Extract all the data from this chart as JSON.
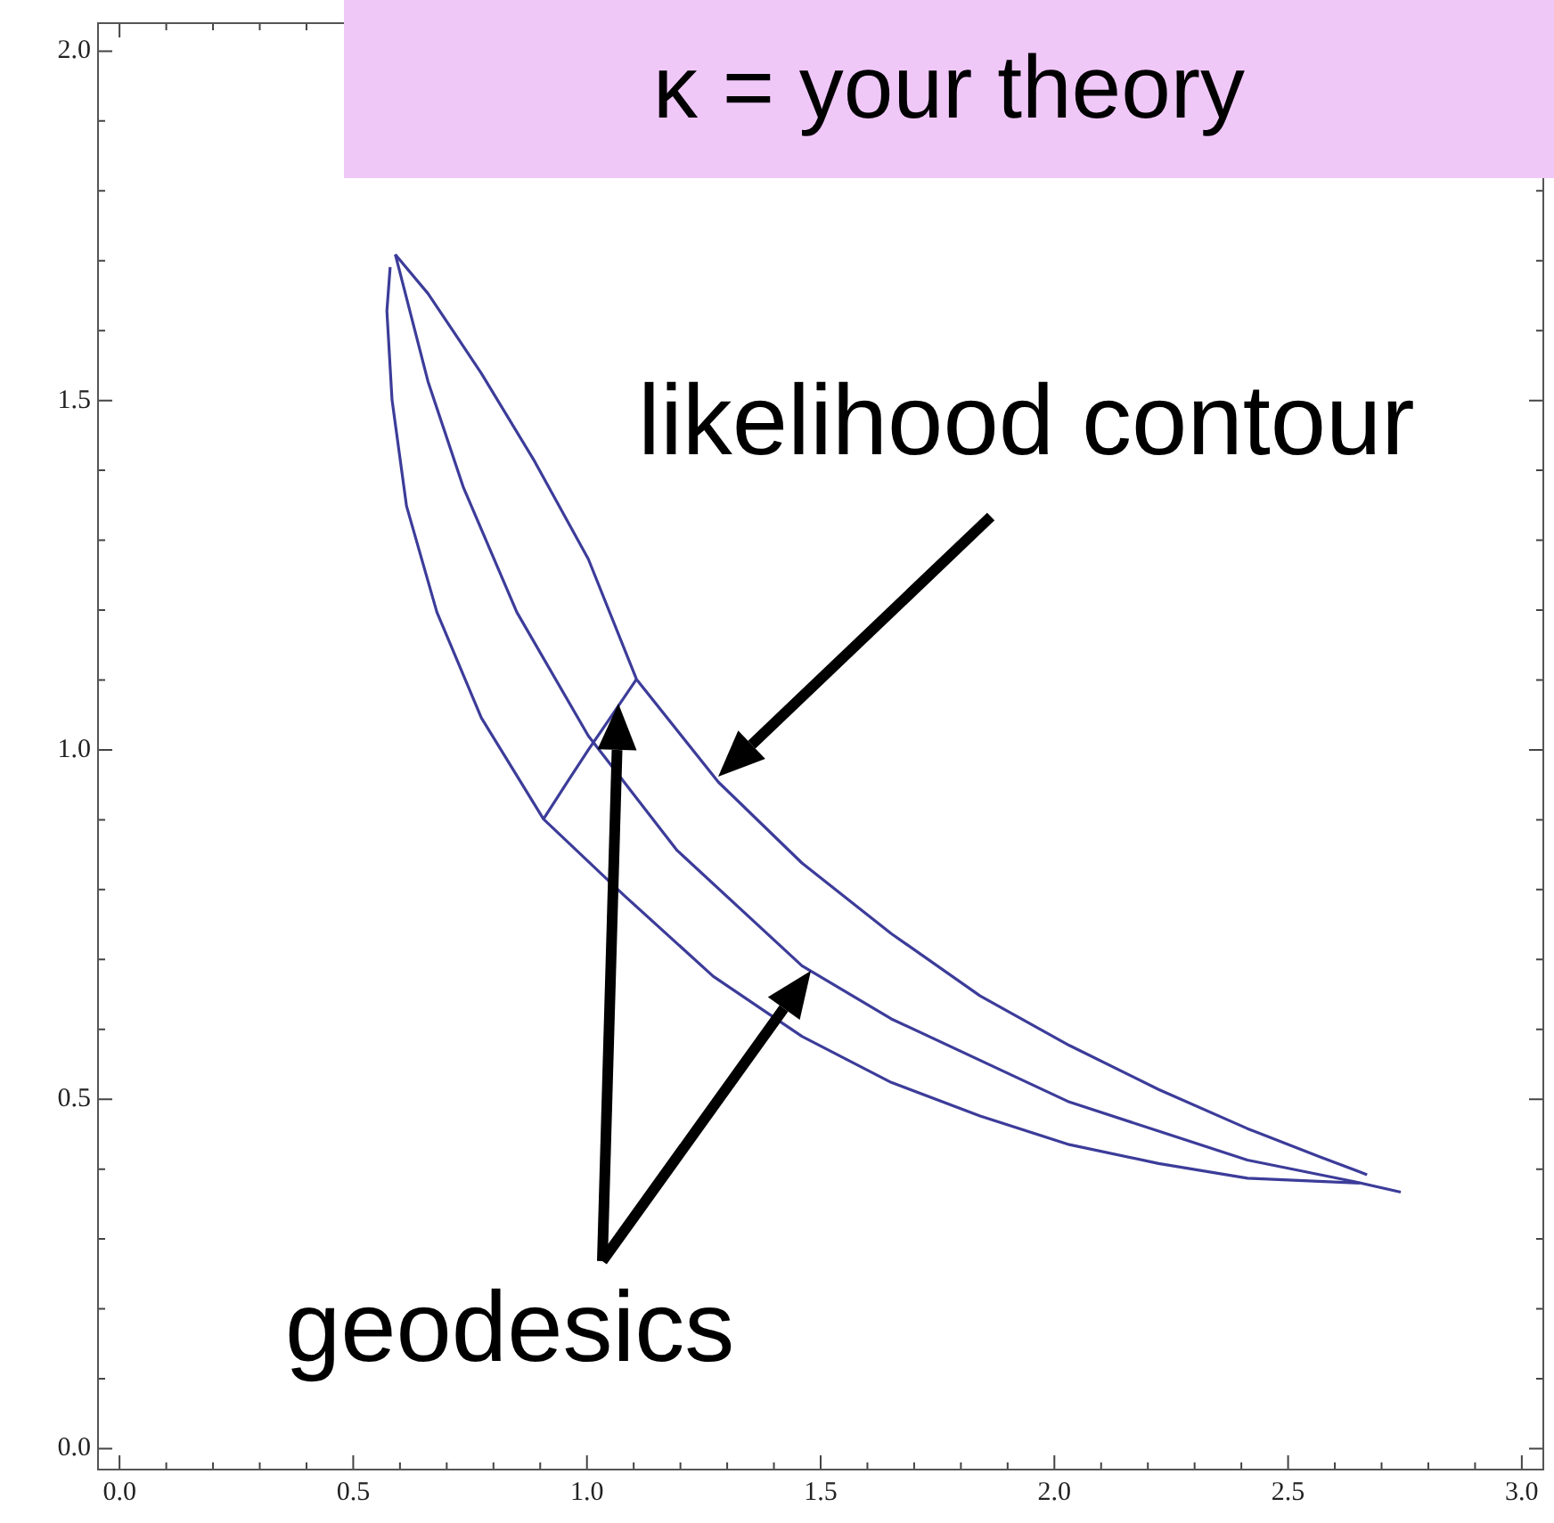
{
  "chart_data": {
    "type": "line",
    "title": "κ = your theory",
    "annotations": [
      "likelihood contour",
      "geodesics"
    ],
    "xlim": [
      -0.046,
      3.046
    ],
    "ylim": [
      -0.03,
      2.04
    ],
    "grid": false,
    "legend": false,
    "marker": "none",
    "line_style": "solid",
    "xticks": [
      {
        "value": 0,
        "label": "0.0"
      },
      {
        "value": 0.1,
        "label": null
      },
      {
        "value": 0.2,
        "label": null
      },
      {
        "value": 0.3,
        "label": null
      },
      {
        "value": 0.4,
        "label": null
      },
      {
        "value": 0.5,
        "label": "0.5"
      },
      {
        "value": 0.6,
        "label": null
      },
      {
        "value": 0.7,
        "label": null
      },
      {
        "value": 0.8,
        "label": null
      },
      {
        "value": 0.9,
        "label": null
      },
      {
        "value": 1,
        "label": "1.0"
      },
      {
        "value": 1.1,
        "label": null
      },
      {
        "value": 1.2,
        "label": null
      },
      {
        "value": 1.3,
        "label": null
      },
      {
        "value": 1.4,
        "label": null
      },
      {
        "value": 1.5,
        "label": "1.5"
      },
      {
        "value": 1.6,
        "label": null
      },
      {
        "value": 1.7,
        "label": null
      },
      {
        "value": 1.8,
        "label": null
      },
      {
        "value": 1.9,
        "label": null
      },
      {
        "value": 2,
        "label": "2.0"
      },
      {
        "value": 2.1,
        "label": null
      },
      {
        "value": 2.2,
        "label": null
      },
      {
        "value": 2.3,
        "label": null
      },
      {
        "value": 2.4,
        "label": null
      },
      {
        "value": 2.5,
        "label": "2.5"
      },
      {
        "value": 2.6,
        "label": null
      },
      {
        "value": 2.7,
        "label": null
      },
      {
        "value": 2.8,
        "label": null
      },
      {
        "value": 2.9,
        "label": null
      },
      {
        "value": 3,
        "label": "3.0"
      }
    ],
    "yticks": [
      {
        "value": 0,
        "label": "0.0"
      },
      {
        "value": 0.1,
        "label": null
      },
      {
        "value": 0.2,
        "label": null
      },
      {
        "value": 0.3,
        "label": null
      },
      {
        "value": 0.4,
        "label": null
      },
      {
        "value": 0.5,
        "label": "0.5"
      },
      {
        "value": 0.6,
        "label": null
      },
      {
        "value": 0.7,
        "label": null
      },
      {
        "value": 0.8,
        "label": null
      },
      {
        "value": 0.9,
        "label": null
      },
      {
        "value": 1,
        "label": "1.0"
      },
      {
        "value": 1.1,
        "label": null
      },
      {
        "value": 1.2,
        "label": null
      },
      {
        "value": 1.3,
        "label": null
      },
      {
        "value": 1.4,
        "label": null
      },
      {
        "value": 1.5,
        "label": "1.5"
      },
      {
        "value": 1.6,
        "label": null
      },
      {
        "value": 1.7,
        "label": null
      },
      {
        "value": 1.8,
        "label": null
      },
      {
        "value": 1.9,
        "label": null
      },
      {
        "value": 2,
        "label": "2.0"
      }
    ],
    "series": [
      {
        "color": "#3c3c9a",
        "x": [
          0.59,
          0.66,
          0.774,
          0.888,
          1.003,
          1.106,
          1.281,
          1.46,
          1.651,
          1.841,
          2.032,
          2.223,
          2.413,
          2.566,
          2.669
        ],
        "values": [
          1.709,
          1.653,
          1.539,
          1.413,
          1.273,
          1.101,
          0.954,
          0.838,
          0.737,
          0.648,
          0.577,
          0.514,
          0.458,
          0.418,
          0.392
        ]
      },
      {
        "color": "#3c3c9a",
        "x": [
          0.579,
          0.572,
          0.583,
          0.614,
          0.679,
          0.774,
          0.907,
          1.079,
          1.27,
          1.46,
          1.651,
          1.841,
          2.032,
          2.223,
          2.413,
          2.653
        ],
        "values": [
          1.691,
          1.628,
          1.501,
          1.349,
          1.197,
          1.046,
          0.901,
          0.792,
          0.676,
          0.59,
          0.524,
          0.476,
          0.435,
          0.408,
          0.387,
          0.38
        ]
      },
      {
        "color": "#3c3c9a",
        "x": [
          0.59,
          0.66,
          0.736,
          0.85,
          1.003,
          1.193,
          1.46,
          1.651,
          2.032,
          2.413,
          2.642,
          2.741
        ],
        "values": [
          1.709,
          1.527,
          1.375,
          1.197,
          1.02,
          0.856,
          0.691,
          0.615,
          0.496,
          0.413,
          0.382,
          0.367
        ]
      },
      {
        "color": "#3c3c9a",
        "x": [
          0.907,
          0.96,
          1.003,
          1.05,
          1.106
        ],
        "values": [
          0.901,
          0.956,
          1.0,
          1.046,
          1.101
        ]
      }
    ]
  }
}
